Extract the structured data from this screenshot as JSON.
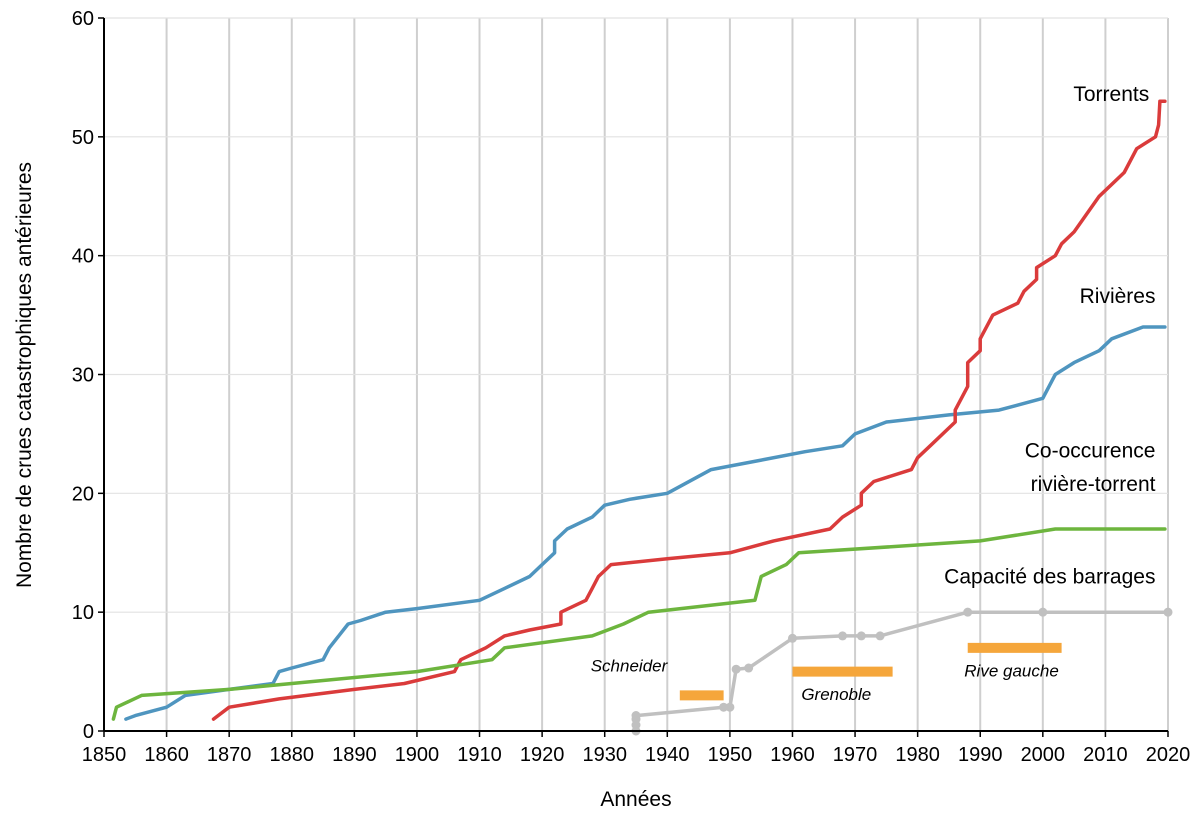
{
  "chart_data": {
    "type": "line",
    "xlabel": "Années",
    "ylabel": "Nombre de crues catastrophiques antérieures",
    "xlim": [
      1850,
      2020
    ],
    "ylim": [
      0,
      60
    ],
    "xticks": [
      1850,
      1860,
      1870,
      1880,
      1890,
      1900,
      1910,
      1920,
      1930,
      1940,
      1950,
      1960,
      1970,
      1980,
      1990,
      2000,
      2010,
      2020
    ],
    "yticks": [
      0,
      10,
      20,
      30,
      40,
      50,
      60
    ],
    "grid": {
      "x": true,
      "y": true
    },
    "series": [
      {
        "name": "Rivières",
        "color": "#4f95bf",
        "points": [
          [
            1853.5,
            1
          ],
          [
            1855,
            1.3
          ],
          [
            1860,
            2
          ],
          [
            1863,
            3
          ],
          [
            1870,
            3.5
          ],
          [
            1877,
            4
          ],
          [
            1878,
            5
          ],
          [
            1880,
            5.3
          ],
          [
            1885,
            6
          ],
          [
            1886,
            7
          ],
          [
            1887.5,
            8
          ],
          [
            1889,
            9
          ],
          [
            1891,
            9.3
          ],
          [
            1895,
            10
          ],
          [
            1900,
            10.3
          ],
          [
            1910,
            11
          ],
          [
            1914,
            12
          ],
          [
            1918,
            13
          ],
          [
            1920,
            14
          ],
          [
            1922,
            15
          ],
          [
            1922,
            16
          ],
          [
            1924,
            17
          ],
          [
            1928,
            18
          ],
          [
            1930,
            19
          ],
          [
            1934,
            19.5
          ],
          [
            1940,
            20
          ],
          [
            1947,
            22
          ],
          [
            1955,
            22.8
          ],
          [
            1962,
            23.5
          ],
          [
            1968,
            24
          ],
          [
            1970,
            25
          ],
          [
            1975,
            26
          ],
          [
            1985,
            26.6
          ],
          [
            1993,
            27
          ],
          [
            2000,
            28
          ],
          [
            2002,
            30
          ],
          [
            2005,
            31
          ],
          [
            2009,
            32
          ],
          [
            2011,
            33
          ],
          [
            2016,
            34
          ],
          [
            2019.5,
            34
          ]
        ]
      },
      {
        "name": "Torrents",
        "color": "#da3b3b",
        "points": [
          [
            1867.5,
            1
          ],
          [
            1870,
            2
          ],
          [
            1878,
            2.7
          ],
          [
            1890,
            3.5
          ],
          [
            1898,
            4
          ],
          [
            1906,
            5
          ],
          [
            1907,
            6
          ],
          [
            1911,
            7
          ],
          [
            1914,
            8
          ],
          [
            1918,
            8.5
          ],
          [
            1923,
            9
          ],
          [
            1923,
            10
          ],
          [
            1927,
            11
          ],
          [
            1928,
            12
          ],
          [
            1929,
            13
          ],
          [
            1931,
            14
          ],
          [
            1940,
            14.5
          ],
          [
            1950,
            15
          ],
          [
            1957,
            16
          ],
          [
            1966,
            17
          ],
          [
            1968,
            18
          ],
          [
            1971,
            19
          ],
          [
            1971,
            20
          ],
          [
            1973,
            21
          ],
          [
            1979,
            22
          ],
          [
            1980,
            23
          ],
          [
            1982,
            24
          ],
          [
            1986,
            26
          ],
          [
            1986,
            27
          ],
          [
            1988,
            29
          ],
          [
            1988,
            31
          ],
          [
            1990,
            32
          ],
          [
            1990,
            33
          ],
          [
            1992,
            35
          ],
          [
            1996,
            36
          ],
          [
            1997,
            37
          ],
          [
            1999,
            38
          ],
          [
            1999,
            39
          ],
          [
            2002,
            40
          ],
          [
            2003,
            41
          ],
          [
            2005,
            42
          ],
          [
            2009,
            45
          ],
          [
            2013,
            47
          ],
          [
            2015,
            49
          ],
          [
            2018,
            50
          ],
          [
            2018.5,
            51
          ],
          [
            2018.7,
            53
          ],
          [
            2019.5,
            53
          ]
        ]
      },
      {
        "name": "Co-occurence rivière-torrent",
        "color": "#6db53e",
        "points": [
          [
            1851.5,
            1
          ],
          [
            1852,
            2
          ],
          [
            1856,
            3
          ],
          [
            1870,
            3.5
          ],
          [
            1880,
            4
          ],
          [
            1900,
            5
          ],
          [
            1912,
            6
          ],
          [
            1914,
            7
          ],
          [
            1928,
            8
          ],
          [
            1933,
            9
          ],
          [
            1937,
            10
          ],
          [
            1954,
            11
          ],
          [
            1955,
            13
          ],
          [
            1959,
            14
          ],
          [
            1961,
            15
          ],
          [
            1990,
            16
          ],
          [
            2002,
            17
          ],
          [
            2019.5,
            17
          ]
        ]
      },
      {
        "name": "Capacité des barrages",
        "color": "#c0c0c0",
        "markers": true,
        "points": [
          [
            1935,
            0
          ],
          [
            1935,
            0.5
          ],
          [
            1935,
            1
          ],
          [
            1935,
            1.3
          ],
          [
            1949,
            2
          ],
          [
            1950,
            2
          ],
          [
            1951,
            5.2
          ],
          [
            1953,
            5.3
          ],
          [
            1960,
            7.8
          ],
          [
            1968,
            8
          ],
          [
            1971,
            8
          ],
          [
            1974,
            8
          ],
          [
            1988,
            10
          ],
          [
            2000,
            10
          ],
          [
            2020,
            10
          ]
        ]
      }
    ],
    "annotations": [
      {
        "text": "Torrents",
        "x": 2017,
        "y": 53,
        "anchor": "end"
      },
      {
        "text": "Rivières",
        "x": 2018,
        "y": 36,
        "anchor": "end"
      },
      {
        "text": "Co-occurence",
        "x": 2018,
        "y": 23,
        "anchor": "end"
      },
      {
        "text": "rivière-torrent",
        "x": 2018,
        "y": 20.2,
        "anchor": "end"
      },
      {
        "text": "Capacité des barrages",
        "x": 2018,
        "y": 12.4,
        "anchor": "end"
      }
    ],
    "period_bars": [
      {
        "label": "Schneider",
        "start": 1942,
        "end": 1949,
        "y": 3,
        "label_x": 1940,
        "label_y": 5,
        "label_anchor": "end"
      },
      {
        "label": "Grenoble",
        "start": 1960,
        "end": 1976,
        "y": 5,
        "label_x": 1967,
        "label_y": 2.6,
        "label_anchor": "middle"
      },
      {
        "label": "Rive gauche",
        "start": 1988,
        "end": 2003,
        "y": 7,
        "label_x": 1995,
        "label_y": 4.6,
        "label_anchor": "middle"
      }
    ],
    "bar_color": "#f5a63b",
    "grid_color": "#cfcfcf",
    "axis_color": "#000000"
  }
}
